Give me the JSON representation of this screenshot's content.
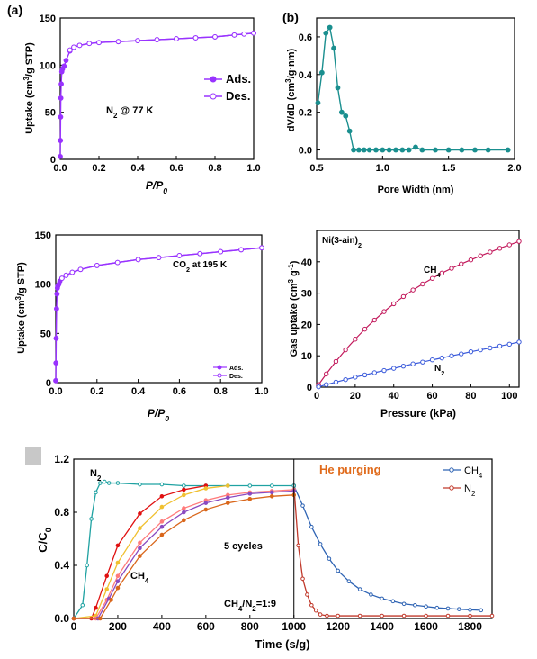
{
  "panel_labels": {
    "a": "(a)",
    "b": "(b)"
  },
  "chart_data": [
    {
      "id": "a",
      "type": "line",
      "xlabel": "P/P0",
      "ylabel": "Uptake (cm³/g STP)",
      "xlim": [
        0,
        1.0
      ],
      "ylim": [
        0,
        150
      ],
      "xticks": [
        "0.0",
        "0.2",
        "0.4",
        "0.6",
        "0.8",
        "1.0"
      ],
      "yticks": [
        "0",
        "50",
        "100",
        "150"
      ],
      "annotation": "N2 @ 77 K",
      "legend": "right",
      "series": [
        {
          "name": "Ads.",
          "color": "#9933ff",
          "marker": "filled-circle",
          "x": [
            0.0,
            0.001,
            0.002,
            0.003,
            0.005,
            0.008,
            0.012,
            0.02,
            0.03,
            0.05,
            0.07,
            0.1,
            0.15,
            0.2,
            0.3,
            0.4,
            0.5,
            0.6,
            0.7,
            0.8,
            0.9,
            1.0
          ],
          "y": [
            3,
            20,
            45,
            65,
            80,
            93,
            96,
            99,
            105,
            115,
            119,
            121,
            123,
            124,
            125,
            126,
            127,
            128,
            129,
            130,
            132,
            134
          ]
        },
        {
          "name": "Des.",
          "color": "#9933ff",
          "marker": "open-circle",
          "x": [
            1.0,
            0.95,
            0.9,
            0.8,
            0.7,
            0.6,
            0.5,
            0.4,
            0.3,
            0.2,
            0.15,
            0.1,
            0.07,
            0.05
          ],
          "y": [
            134,
            133,
            132,
            130,
            129,
            128,
            127,
            126,
            125,
            124,
            123,
            121,
            119,
            116
          ]
        }
      ]
    },
    {
      "id": "b",
      "type": "line",
      "xlabel": "Pore Width (nm)",
      "ylabel": "dV/dD (cm³/g·nm)",
      "xlim": [
        0.5,
        2.0
      ],
      "ylim": [
        -0.05,
        0.7
      ],
      "xticks": [
        "0.5",
        "1.0",
        "1.5",
        "2.0"
      ],
      "yticks": [
        "0.0",
        "0.2",
        "0.4",
        "0.6"
      ],
      "series": [
        {
          "name": "",
          "color": "#1a8f8f",
          "marker": "filled-circle",
          "x": [
            0.51,
            0.54,
            0.57,
            0.6,
            0.63,
            0.66,
            0.69,
            0.72,
            0.75,
            0.78,
            0.82,
            0.86,
            0.9,
            0.95,
            1.0,
            1.05,
            1.1,
            1.15,
            1.2,
            1.25,
            1.3,
            1.4,
            1.5,
            1.6,
            1.7,
            1.8,
            1.95
          ],
          "y": [
            0.25,
            0.41,
            0.62,
            0.65,
            0.54,
            0.33,
            0.2,
            0.18,
            0.1,
            0.0,
            0.0,
            0.0,
            0.0,
            0.0,
            0.0,
            0.0,
            0.0,
            0.0,
            0.0,
            0.015,
            0.0,
            0.0,
            0.0,
            0.0,
            0.0,
            0.0,
            0.0
          ]
        }
      ]
    },
    {
      "id": "c",
      "type": "line",
      "xlabel": "P/P0",
      "ylabel": "Uptake (cm³/g STP)",
      "xlim": [
        0,
        1.0
      ],
      "ylim": [
        0,
        150
      ],
      "xticks": [
        "0.0",
        "0.2",
        "0.4",
        "0.6",
        "0.8",
        "1.0"
      ],
      "yticks": [
        "0",
        "50",
        "100",
        "150"
      ],
      "annotation": "CO2 at 195 K",
      "legend": "bottom-right",
      "series": [
        {
          "name": "Ads.",
          "color": "#9933ff",
          "marker": "filled-circle",
          "x": [
            0.0,
            0.001,
            0.002,
            0.004,
            0.006,
            0.008,
            0.01,
            0.015,
            0.02,
            0.03,
            0.05,
            0.08,
            0.12,
            0.2,
            0.3,
            0.4,
            0.5,
            0.6,
            0.7,
            0.8,
            0.9,
            1.0
          ],
          "y": [
            2,
            20,
            45,
            75,
            90,
            96,
            98,
            100,
            103,
            106,
            109,
            112,
            115,
            119,
            122,
            125,
            127,
            129,
            131,
            133,
            135,
            137
          ]
        },
        {
          "name": "Des.",
          "color": "#9933ff",
          "marker": "open-circle",
          "x": [
            1.0,
            0.9,
            0.8,
            0.7,
            0.6,
            0.5,
            0.4,
            0.3,
            0.2,
            0.12,
            0.08,
            0.05,
            0.03
          ],
          "y": [
            137,
            135,
            133,
            131,
            129,
            127,
            125,
            122,
            119,
            115,
            112,
            109,
            106
          ]
        }
      ]
    },
    {
      "id": "d",
      "type": "line",
      "title": "Ni(3-ain)2",
      "xlabel": "Pressure (kPa)",
      "ylabel": "Gas uptake (cm³ g⁻¹)",
      "xlim": [
        0,
        105
      ],
      "ylim": [
        0,
        50
      ],
      "xticks": [
        "0",
        "20",
        "40",
        "60",
        "80",
        "100"
      ],
      "yticks": [
        "0",
        "10",
        "20",
        "30",
        "40"
      ],
      "series": [
        {
          "name": "CH4",
          "color": "#c2185b",
          "marker": "open-circle",
          "x": [
            1,
            5,
            10,
            15,
            20,
            25,
            30,
            35,
            40,
            45,
            50,
            55,
            60,
            65,
            70,
            75,
            80,
            85,
            90,
            95,
            100,
            105
          ],
          "y": [
            0.8,
            4.2,
            8.2,
            11.9,
            15.3,
            18.5,
            21.4,
            24.1,
            26.6,
            28.9,
            31.0,
            32.9,
            34.7,
            36.4,
            37.9,
            39.3,
            40.6,
            41.9,
            43.1,
            44.3,
            45.4,
            46.5
          ]
        },
        {
          "name": "N2",
          "color": "#3b5bdb",
          "marker": "open-circle",
          "x": [
            1,
            5,
            10,
            15,
            20,
            25,
            30,
            35,
            40,
            45,
            50,
            55,
            60,
            65,
            70,
            75,
            80,
            85,
            90,
            95,
            100,
            105
          ],
          "y": [
            0.1,
            0.8,
            1.6,
            2.4,
            3.2,
            3.9,
            4.6,
            5.3,
            6.0,
            6.7,
            7.4,
            8.0,
            8.7,
            9.3,
            10.0,
            10.6,
            11.3,
            11.9,
            12.5,
            13.1,
            13.7,
            14.4
          ]
        }
      ]
    },
    {
      "id": "e",
      "type": "line",
      "xlabel": "Time (s/g)",
      "ylabel": "C/C0",
      "xlim": [
        0,
        1900
      ],
      "ylim": [
        0,
        1.2
      ],
      "xticks": [
        "0",
        "200",
        "400",
        "600",
        "800",
        "1000",
        "1200",
        "1400",
        "1600",
        "1800"
      ],
      "yticks": [
        "0.0",
        "0.4",
        "0.8",
        "1.2"
      ],
      "annotations": [
        "He purging",
        "5 cycles",
        "CH4/N2=1:9"
      ],
      "series_labels": [
        "N2",
        "CH4"
      ],
      "legend": "top-right",
      "divider_x": 1000,
      "series": [
        {
          "name": "CH4",
          "color": "#2f64b4",
          "marker": "open-circle",
          "x": [
            1000,
            1040,
            1080,
            1120,
            1160,
            1200,
            1250,
            1300,
            1350,
            1400,
            1450,
            1500,
            1550,
            1600,
            1650,
            1700,
            1750,
            1800,
            1850
          ],
          "y": [
            1.0,
            0.85,
            0.69,
            0.56,
            0.45,
            0.36,
            0.28,
            0.22,
            0.18,
            0.15,
            0.13,
            0.11,
            0.1,
            0.09,
            0.08,
            0.075,
            0.07,
            0.065,
            0.062
          ]
        },
        {
          "name": "N2",
          "color": "#c0392b",
          "marker": "open-circle",
          "x": [
            1000,
            1020,
            1040,
            1060,
            1080,
            1100,
            1120,
            1150,
            1200,
            1300,
            1400,
            1500,
            1600,
            1700,
            1800,
            1900
          ],
          "y": [
            1.0,
            0.55,
            0.3,
            0.18,
            0.1,
            0.06,
            0.03,
            0.02,
            0.02,
            0.02,
            0.02,
            0.02,
            0.02,
            0.02,
            0.02,
            0.02
          ]
        },
        {
          "name": "",
          "color": "#1fa2a2",
          "marker": "open-circle",
          "x": [
            0,
            40,
            60,
            80,
            100,
            120,
            140,
            160,
            200,
            300,
            400,
            500,
            600,
            700,
            800,
            900,
            1000
          ],
          "y": [
            0.0,
            0.1,
            0.4,
            0.75,
            0.95,
            1.02,
            1.03,
            1.02,
            1.02,
            1.01,
            1.01,
            1.0,
            1.0,
            1.0,
            1.0,
            1.0,
            1.0
          ]
        },
        {
          "name": "",
          "color": "#e01010",
          "marker": "filled-circle",
          "x": [
            0,
            80,
            100,
            150,
            200,
            300,
            400,
            500,
            600
          ],
          "y": [
            0.0,
            0.0,
            0.08,
            0.32,
            0.55,
            0.79,
            0.92,
            0.97,
            1.0
          ]
        },
        {
          "name": "",
          "color": "#f0c030",
          "marker": "filled-circle",
          "x": [
            0,
            100,
            150,
            200,
            300,
            400,
            500,
            600,
            700
          ],
          "y": [
            0.0,
            0.02,
            0.22,
            0.42,
            0.68,
            0.84,
            0.93,
            0.98,
            1.0
          ]
        },
        {
          "name": "",
          "color": "#ff7b7b",
          "marker": "filled-circle",
          "x": [
            0,
            100,
            150,
            200,
            300,
            400,
            500,
            600,
            700,
            800,
            900,
            1000
          ],
          "y": [
            0.0,
            0.0,
            0.14,
            0.32,
            0.57,
            0.73,
            0.83,
            0.89,
            0.93,
            0.95,
            0.96,
            0.97
          ]
        },
        {
          "name": "",
          "color": "#8a4ac0",
          "marker": "filled-circle",
          "x": [
            0,
            110,
            160,
            200,
            300,
            400,
            500,
            600,
            700,
            800,
            900,
            1000
          ],
          "y": [
            0.0,
            0.0,
            0.15,
            0.28,
            0.53,
            0.69,
            0.8,
            0.87,
            0.91,
            0.94,
            0.95,
            0.96
          ]
        },
        {
          "name": "",
          "color": "#d9661a",
          "marker": "filled-circle",
          "x": [
            0,
            120,
            170,
            200,
            300,
            400,
            500,
            600,
            700,
            800,
            900,
            1000
          ],
          "y": [
            0.0,
            0.0,
            0.14,
            0.23,
            0.47,
            0.63,
            0.74,
            0.82,
            0.87,
            0.9,
            0.92,
            0.93
          ]
        }
      ]
    }
  ]
}
